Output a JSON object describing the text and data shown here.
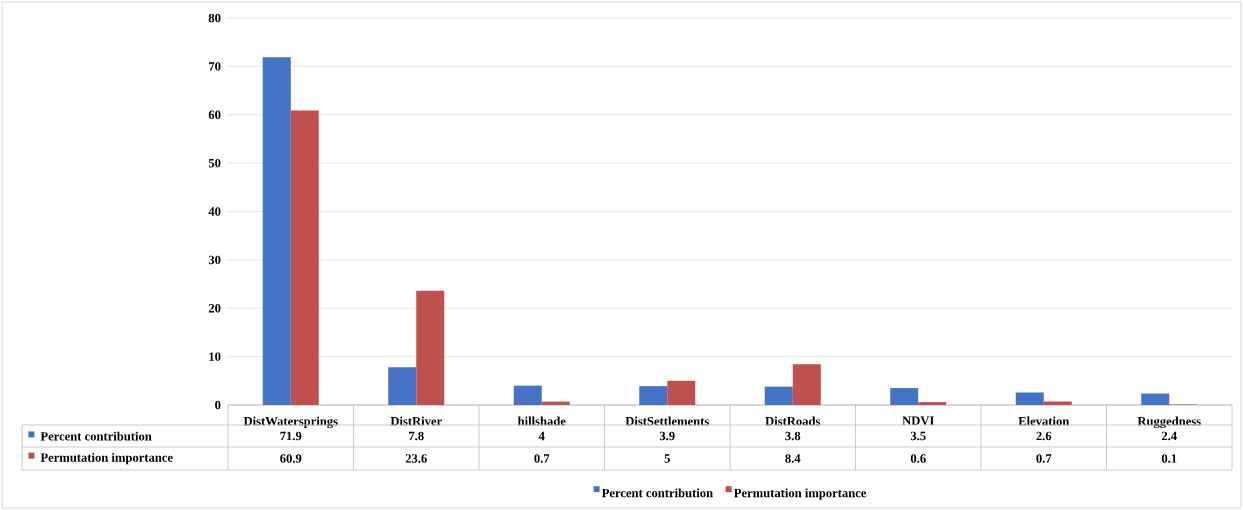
{
  "chart_data": {
    "type": "bar",
    "categories": [
      "DistWatersprings",
      "DistRiver",
      "hillshade",
      "DistSettlements",
      "DistRoads",
      "NDVI",
      "Elevation",
      "Ruggedness"
    ],
    "series": [
      {
        "name": "Percent contribution",
        "color": "#4472c4",
        "values": [
          71.9,
          7.8,
          4,
          3.9,
          3.8,
          3.5,
          2.6,
          2.4
        ]
      },
      {
        "name": "Permutation importance",
        "color": "#c0504d",
        "values": [
          60.9,
          23.6,
          0.7,
          5,
          8.4,
          0.6,
          0.7,
          0.1
        ]
      }
    ],
    "ylim": [
      0,
      80
    ],
    "yticks": [
      0,
      10,
      20,
      30,
      40,
      50,
      60,
      70,
      80
    ],
    "grid": "y",
    "legend": "bottom",
    "data_labels": true
  }
}
